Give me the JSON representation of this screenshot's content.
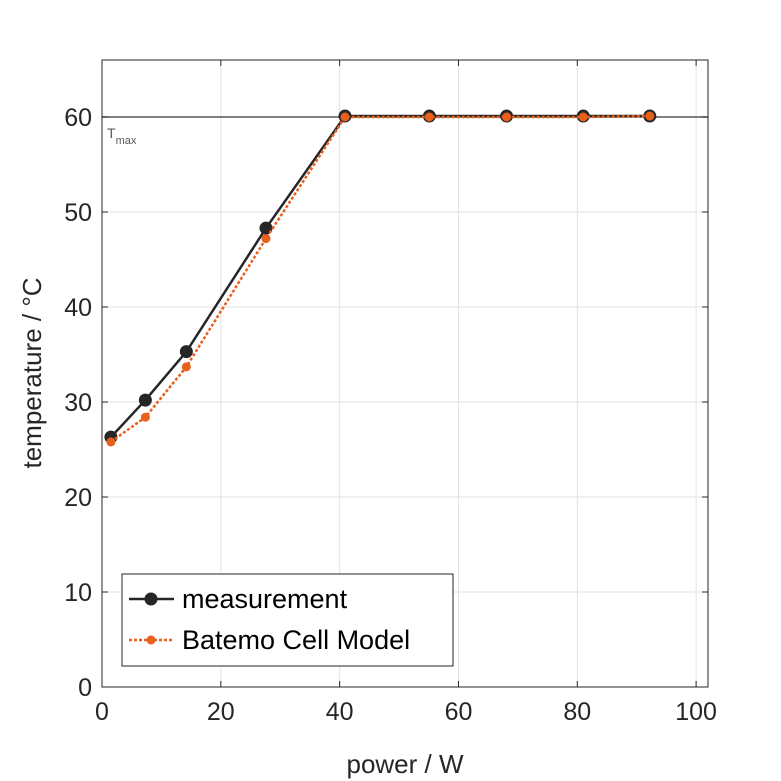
{
  "chart_data": {
    "type": "line",
    "xlabel": "power / W",
    "ylabel": "temperature / °C",
    "xlim": [
      0,
      102
    ],
    "ylim": [
      0,
      66
    ],
    "xticks": [
      0,
      20,
      40,
      60,
      80,
      100
    ],
    "yticks": [
      0,
      10,
      20,
      30,
      40,
      50,
      60
    ],
    "grid": true,
    "legend_position": "bottom-left",
    "reference_line": {
      "y": 60,
      "label_main": "T",
      "label_sub": "max",
      "color": "#555555"
    },
    "series": [
      {
        "name": "measurement",
        "color": "#262626",
        "line_style": "solid",
        "marker": "large-circle",
        "x": [
          1.5,
          7.3,
          14.2,
          27.6,
          40.9,
          55.1,
          68.1,
          81.0,
          92.2
        ],
        "y": [
          26.3,
          30.2,
          35.3,
          48.3,
          60.1,
          60.1,
          60.1,
          60.1,
          60.1
        ]
      },
      {
        "name": "Batemo Cell Model",
        "color": "#e8601c",
        "line_style": "dotted",
        "marker": "small-circle",
        "x": [
          1.5,
          7.3,
          14.2,
          27.6,
          40.9,
          55.1,
          68.1,
          81.0,
          92.2
        ],
        "y": [
          25.8,
          28.4,
          33.7,
          47.2,
          60.0,
          60.0,
          60.0,
          60.0,
          60.1
        ]
      }
    ]
  }
}
